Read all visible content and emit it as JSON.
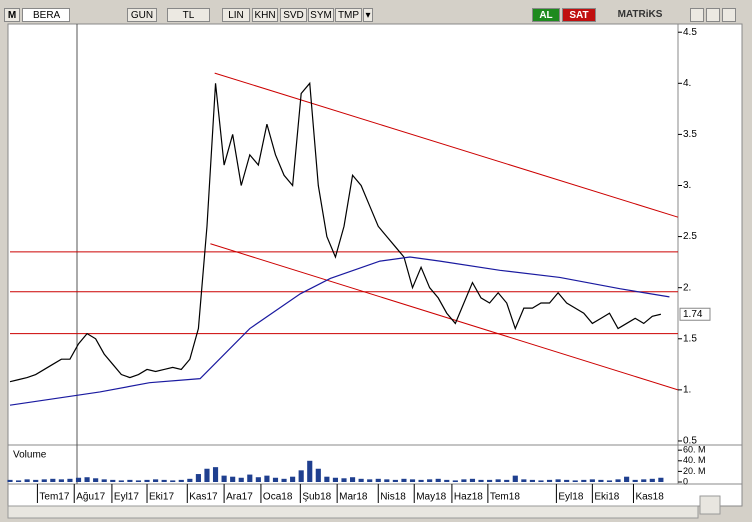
{
  "toolbar": {
    "logo": "M",
    "symbol": "BERA",
    "buttons": [
      "GUN",
      "TL",
      "LIN",
      "KHN",
      "SVD",
      "SYM",
      "TMP"
    ],
    "buy": "AL",
    "sell": "SAT",
    "brand": "MATRiKS"
  },
  "chart_data": {
    "type": "line",
    "x": [
      0,
      1,
      2,
      3,
      4,
      5,
      6,
      7,
      8,
      9,
      10,
      11,
      12,
      13,
      14,
      15,
      16,
      17,
      18,
      19,
      20,
      21,
      22,
      23,
      24,
      25,
      26,
      27,
      28,
      29,
      30,
      31,
      32,
      33,
      34,
      35,
      36,
      37,
      38,
      39,
      40,
      41,
      42,
      43,
      44,
      45,
      46,
      47,
      48,
      49,
      50,
      51,
      52,
      53,
      54,
      55,
      56,
      57,
      58,
      59,
      60,
      61,
      62,
      63,
      64,
      65,
      66,
      67,
      68,
      69,
      70,
      71,
      72,
      73,
      74,
      75,
      76
    ],
    "xlim": [
      0,
      78
    ],
    "xticks": [
      {
        "value": 3.2,
        "label": "Tem17"
      },
      {
        "value": 7.5,
        "label": "Ağu17"
      },
      {
        "value": 11.9,
        "label": "Eyl17"
      },
      {
        "value": 16,
        "label": "Eki17"
      },
      {
        "value": 20.7,
        "label": "Kas17"
      },
      {
        "value": 25,
        "label": "Ara17"
      },
      {
        "value": 29.3,
        "label": "Oca18"
      },
      {
        "value": 33.9,
        "label": "Şub18"
      },
      {
        "value": 38.2,
        "label": "Mar18"
      },
      {
        "value": 43,
        "label": "Nis18"
      },
      {
        "value": 47.2,
        "label": "May18"
      },
      {
        "value": 51.6,
        "label": "Haz18"
      },
      {
        "value": 55.8,
        "label": "Tem18"
      },
      {
        "value": 63.8,
        "label": "Eyl18"
      },
      {
        "value": 68,
        "label": "Eki18"
      },
      {
        "value": 72.8,
        "label": "Kas18"
      }
    ],
    "ylim": [
      0.48,
      4.6
    ],
    "yticks": [
      {
        "value": 0.5,
        "label": "0.5"
      },
      {
        "value": 1,
        "label": "1."
      },
      1.5,
      {
        "value": 2,
        "label": "2."
      },
      2.5,
      {
        "value": 3,
        "label": "3."
      },
      3.5,
      {
        "value": 4,
        "label": "4."
      },
      4.5
    ],
    "last_value": 1.74,
    "series": [
      {
        "color": "#000000",
        "values": [
          1.08,
          1.1,
          1.12,
          1.15,
          1.2,
          1.25,
          1.3,
          1.3,
          1.45,
          1.55,
          1.5,
          1.35,
          1.25,
          1.15,
          1.12,
          1.15,
          1.2,
          1.18,
          1.2,
          1.22,
          1.2,
          1.3,
          1.6,
          2.6,
          4.0,
          3.2,
          3.5,
          3.0,
          3.3,
          3.2,
          3.6,
          3.3,
          3.1,
          3.0,
          3.9,
          4.0,
          3.0,
          2.5,
          2.3,
          2.6,
          3.1,
          3.0,
          2.8,
          2.6,
          2.5,
          2.4,
          2.3,
          2.0,
          2.2,
          2.0,
          1.9,
          1.75,
          1.65,
          1.85,
          2.05,
          1.9,
          1.85,
          1.95,
          1.85,
          1.6,
          1.8,
          1.8,
          1.85,
          1.85,
          1.95,
          1.85,
          1.8,
          1.75,
          1.65,
          1.7,
          1.75,
          1.6,
          1.65,
          1.7,
          1.65,
          1.72,
          1.74
        ]
      },
      {
        "color": "#1a1aa0",
        "x": [
          0,
          10.5,
          16.3,
          22.2,
          28,
          33.9,
          37.4,
          43.2,
          46.7,
          50.2,
          57.2,
          64.2,
          71.2,
          77
        ],
        "values": [
          0.85,
          0.98,
          1.07,
          1.11,
          1.6,
          1.94,
          2.09,
          2.26,
          2.3,
          2.26,
          2.17,
          2.1,
          1.99,
          1.91
        ]
      }
    ],
    "hlines": {
      "color": "#cc0000",
      "values": [
        2.35,
        1.96,
        1.55
      ]
    },
    "trendlines": {
      "color": "#cc0000",
      "lines": [
        {
          "x": [
            23.9,
            78
          ],
          "values": [
            4.1,
            2.69
          ]
        },
        {
          "x": [
            23.4,
            78
          ],
          "values": [
            2.43,
            1.0
          ]
        }
      ]
    },
    "volume": {
      "title": "Volume",
      "color": "#1f3f8f",
      "ylim": [
        0,
        66
      ],
      "yticks": [
        {
          "value": 0,
          "label": "0"
        },
        {
          "value": 20,
          "label": "20. M"
        },
        {
          "value": 40,
          "label": "40. M"
        },
        {
          "value": 60,
          "label": "60. M"
        }
      ],
      "values": [
        4,
        3,
        5,
        4,
        5,
        6,
        5,
        6,
        8,
        9,
        7,
        5,
        4,
        3,
        4,
        3,
        4,
        5,
        4,
        3,
        4,
        6,
        15,
        25,
        28,
        12,
        10,
        8,
        14,
        9,
        12,
        8,
        6,
        10,
        22,
        40,
        25,
        10,
        8,
        7,
        9,
        6,
        5,
        6,
        5,
        4,
        6,
        5,
        4,
        5,
        6,
        4,
        3,
        5,
        6,
        4,
        4,
        5,
        4,
        12,
        5,
        4,
        3,
        4,
        5,
        4,
        3,
        4,
        5,
        4,
        3,
        5,
        10,
        4,
        5,
        6,
        8
      ]
    }
  }
}
